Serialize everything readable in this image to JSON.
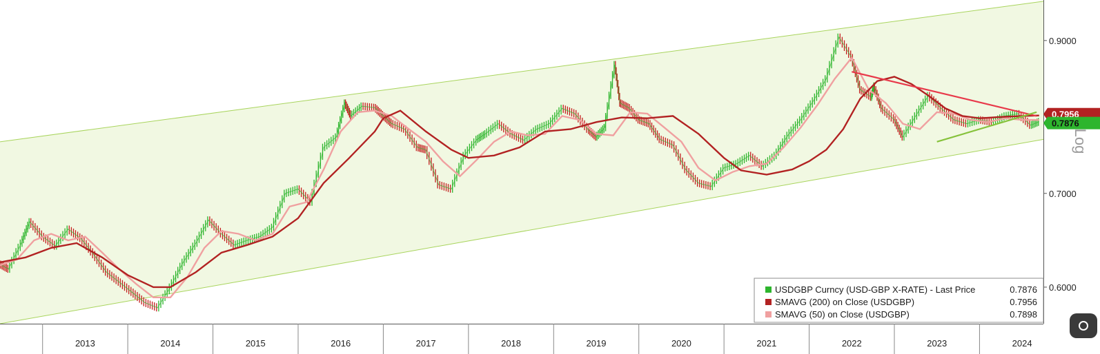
{
  "chart_data": {
    "type": "line",
    "title": "",
    "xlabel": "",
    "ylabel": "",
    "scale": "log",
    "scale_label": "Log",
    "ylim": [
      0.562,
      0.967
    ],
    "xlim": [
      2012.5,
      2024.75
    ],
    "grid": false,
    "legend_position": "bottom-right",
    "colors": {
      "price_up": "#2db52d",
      "price_down": "#c41e1e",
      "sma200": "#b22222",
      "sma50": "#f0a0a0",
      "channel_fill": "#f1f8e2",
      "channel_line": "#a8d45c",
      "resistance": "#e8394a",
      "support": "#86c23b"
    },
    "x_ticks": [
      {
        "label": "2013",
        "x": 2013.5
      },
      {
        "label": "2014",
        "x": 2014.5
      },
      {
        "label": "2015",
        "x": 2015.5
      },
      {
        "label": "2016",
        "x": 2016.5
      },
      {
        "label": "2017",
        "x": 2017.5
      },
      {
        "label": "2018",
        "x": 2018.5
      },
      {
        "label": "2019",
        "x": 2019.5
      },
      {
        "label": "2020",
        "x": 2020.5
      },
      {
        "label": "2021",
        "x": 2021.5
      },
      {
        "label": "2022",
        "x": 2022.5
      },
      {
        "label": "2023",
        "x": 2023.5
      },
      {
        "label": "2024",
        "x": 2024.5
      }
    ],
    "y_ticks": [
      {
        "label": "0.9000",
        "value": 0.9
      },
      {
        "label": "0.7000",
        "value": 0.7
      },
      {
        "label": "0.6000",
        "value": 0.6
      }
    ],
    "channel": {
      "upper": [
        [
          2012.5,
          0.762
        ],
        [
          2024.75,
          0.96
        ]
      ],
      "lower": [
        [
          2012.5,
          0.565
        ],
        [
          2024.75,
          0.765
        ]
      ]
    },
    "trendlines": [
      {
        "name": "resistance",
        "points": [
          [
            2022.5,
            0.855
          ],
          [
            2024.67,
            0.795
          ]
        ]
      },
      {
        "name": "support",
        "points": [
          [
            2023.5,
            0.762
          ],
          [
            2024.67,
            0.8
          ]
        ]
      }
    ],
    "series": [
      {
        "name": "USDGBP Curncy (USD-GBP X-RATE) - Last Price",
        "last": "0.7876",
        "color": "#2db52d",
        "x": [
          2012.5,
          2012.6,
          2012.75,
          2012.85,
          2013.0,
          2013.15,
          2013.3,
          2013.45,
          2013.6,
          2013.75,
          2013.9,
          2014.05,
          2014.2,
          2014.35,
          2014.5,
          2014.65,
          2014.8,
          2014.95,
          2015.1,
          2015.25,
          2015.4,
          2015.55,
          2015.7,
          2015.85,
          2016.0,
          2016.15,
          2016.3,
          2016.45,
          2016.55,
          2016.62,
          2016.75,
          2016.9,
          2017.0,
          2017.1,
          2017.25,
          2017.4,
          2017.5,
          2017.65,
          2017.8,
          2017.95,
          2018.1,
          2018.2,
          2018.35,
          2018.5,
          2018.65,
          2018.8,
          2018.95,
          2019.1,
          2019.25,
          2019.4,
          2019.5,
          2019.6,
          2019.72,
          2019.78,
          2019.88,
          2020.0,
          2020.12,
          2020.25,
          2020.4,
          2020.55,
          2020.7,
          2020.85,
          2021.0,
          2021.15,
          2021.3,
          2021.45,
          2021.6,
          2021.75,
          2021.9,
          2022.05,
          2022.2,
          2022.35,
          2022.5,
          2022.6,
          2022.73,
          2022.76,
          2022.85,
          2023.0,
          2023.1,
          2023.25,
          2023.4,
          2023.55,
          2023.7,
          2023.85,
          2024.0,
          2024.15,
          2024.3,
          2024.45,
          2024.6,
          2024.7
        ],
        "values": [
          0.623,
          0.618,
          0.645,
          0.668,
          0.652,
          0.642,
          0.66,
          0.65,
          0.633,
          0.615,
          0.605,
          0.595,
          0.585,
          0.58,
          0.6,
          0.625,
          0.645,
          0.67,
          0.655,
          0.643,
          0.648,
          0.652,
          0.662,
          0.7,
          0.705,
          0.69,
          0.755,
          0.768,
          0.812,
          0.795,
          0.808,
          0.806,
          0.795,
          0.785,
          0.778,
          0.755,
          0.752,
          0.71,
          0.705,
          0.745,
          0.765,
          0.772,
          0.785,
          0.772,
          0.764,
          0.778,
          0.785,
          0.805,
          0.798,
          0.778,
          0.768,
          0.78,
          0.865,
          0.812,
          0.806,
          0.79,
          0.785,
          0.765,
          0.758,
          0.728,
          0.712,
          0.708,
          0.73,
          0.735,
          0.745,
          0.732,
          0.745,
          0.77,
          0.79,
          0.815,
          0.845,
          0.905,
          0.875,
          0.83,
          0.82,
          0.835,
          0.805,
          0.79,
          0.768,
          0.795,
          0.822,
          0.805,
          0.79,
          0.785,
          0.79,
          0.787,
          0.795,
          0.798,
          0.783,
          0.7876
        ]
      },
      {
        "name": "SMAVG (200)  on Close (USDGBP)",
        "last": "0.7956",
        "color": "#b22222",
        "x": [
          2012.5,
          2012.8,
          2013.1,
          2013.4,
          2013.7,
          2014.0,
          2014.3,
          2014.5,
          2014.8,
          2015.1,
          2015.4,
          2015.7,
          2016.0,
          2016.3,
          2016.6,
          2016.9,
          2017.0,
          2017.2,
          2017.5,
          2017.8,
          2018.0,
          2018.3,
          2018.6,
          2018.9,
          2019.2,
          2019.5,
          2019.8,
          2020.1,
          2020.4,
          2020.7,
          2021.0,
          2021.2,
          2021.5,
          2021.8,
          2022.0,
          2022.2,
          2022.4,
          2022.6,
          2022.8,
          2023.0,
          2023.2,
          2023.4,
          2023.6,
          2023.8,
          2024.0,
          2024.3,
          2024.5,
          2024.7
        ],
        "values": [
          0.625,
          0.63,
          0.64,
          0.645,
          0.63,
          0.612,
          0.6,
          0.6,
          0.615,
          0.635,
          0.643,
          0.652,
          0.672,
          0.712,
          0.742,
          0.775,
          0.792,
          0.802,
          0.775,
          0.752,
          0.742,
          0.745,
          0.755,
          0.775,
          0.778,
          0.787,
          0.793,
          0.792,
          0.795,
          0.772,
          0.742,
          0.727,
          0.722,
          0.728,
          0.738,
          0.752,
          0.778,
          0.818,
          0.842,
          0.848,
          0.838,
          0.822,
          0.805,
          0.795,
          0.792,
          0.794,
          0.795,
          0.7956
        ]
      },
      {
        "name": "SMAVG (50)  on Close (USDGBP)",
        "last": "0.7898",
        "color": "#f0a0a0",
        "x": [
          2012.5,
          2012.7,
          2012.9,
          2013.1,
          2013.3,
          2013.5,
          2013.7,
          2013.9,
          2014.1,
          2014.3,
          2014.5,
          2014.7,
          2014.9,
          2015.1,
          2015.3,
          2015.5,
          2015.7,
          2015.9,
          2016.1,
          2016.3,
          2016.5,
          2016.7,
          2016.9,
          2017.1,
          2017.3,
          2017.5,
          2017.7,
          2017.9,
          2018.1,
          2018.3,
          2018.5,
          2018.7,
          2018.9,
          2019.1,
          2019.3,
          2019.5,
          2019.7,
          2019.9,
          2020.1,
          2020.3,
          2020.5,
          2020.7,
          2020.9,
          2021.1,
          2021.3,
          2021.5,
          2021.7,
          2021.9,
          2022.1,
          2022.3,
          2022.5,
          2022.7,
          2022.9,
          2023.1,
          2023.3,
          2023.5,
          2023.7,
          2023.9,
          2024.1,
          2024.3,
          2024.5,
          2024.7
        ],
        "values": [
          0.622,
          0.628,
          0.648,
          0.655,
          0.648,
          0.652,
          0.635,
          0.618,
          0.603,
          0.59,
          0.59,
          0.61,
          0.64,
          0.658,
          0.655,
          0.648,
          0.655,
          0.685,
          0.69,
          0.728,
          0.775,
          0.8,
          0.802,
          0.795,
          0.778,
          0.762,
          0.738,
          0.72,
          0.74,
          0.762,
          0.775,
          0.77,
          0.772,
          0.795,
          0.79,
          0.772,
          0.77,
          0.8,
          0.798,
          0.78,
          0.762,
          0.73,
          0.715,
          0.725,
          0.732,
          0.735,
          0.755,
          0.78,
          0.81,
          0.845,
          0.875,
          0.83,
          0.812,
          0.785,
          0.778,
          0.8,
          0.798,
          0.79,
          0.787,
          0.792,
          0.79,
          0.7898
        ]
      }
    ]
  }
}
